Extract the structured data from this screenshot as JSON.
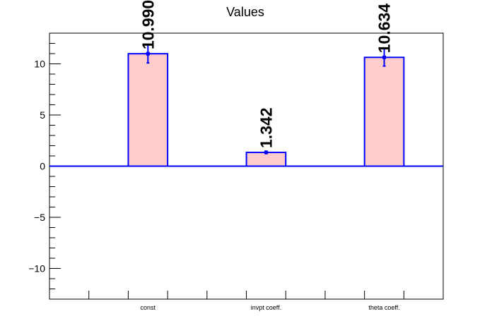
{
  "chart_data": {
    "type": "bar",
    "title": "Values",
    "xlabel": "",
    "ylabel": "",
    "categories": [
      "const",
      "invpt coeff.",
      "theta coeff."
    ],
    "values": [
      10.99,
      1.342,
      10.634
    ],
    "value_labels": [
      "10.990",
      "1.342",
      "10.634"
    ],
    "errors": [
      0.9,
      0.12,
      0.85
    ],
    "ylim": [
      -13,
      13
    ],
    "yticks": [
      -10,
      -5,
      0,
      5,
      10
    ],
    "ytick_labels": [
      "−10",
      "−5",
      "0",
      "5",
      "10"
    ],
    "grid": false,
    "colors": {
      "fill": "#ffcccc",
      "line": "#0000ff",
      "axis": "#000000"
    }
  }
}
